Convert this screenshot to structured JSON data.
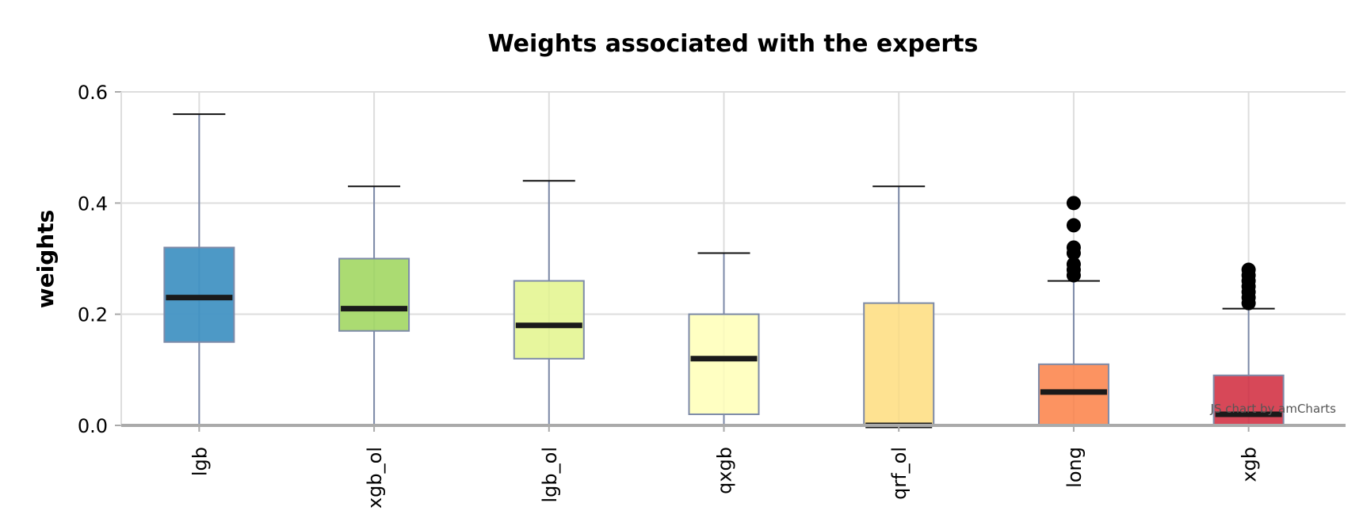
{
  "chart_data": {
    "type": "box",
    "title": "Weights associated with the experts",
    "ylabel": "weights",
    "xlabel": "",
    "ylim": [
      0,
      0.6
    ],
    "yticks": [
      0.0,
      0.2,
      0.4,
      0.6
    ],
    "ytick_labels": [
      "0.0",
      "0.2",
      "0.4",
      "0.6"
    ],
    "grid": true,
    "categories": [
      "lgb",
      "xgb_ol",
      "lgb_ol",
      "qxgb",
      "qrf_ol",
      "long",
      "xgb"
    ],
    "boxes": [
      {
        "name": "lgb",
        "min": 0.0,
        "q1": 0.15,
        "median": 0.23,
        "q3": 0.32,
        "max": 0.56,
        "color": "#4393c3",
        "outliers": []
      },
      {
        "name": "xgb_ol",
        "min": 0.0,
        "q1": 0.17,
        "median": 0.21,
        "q3": 0.3,
        "max": 0.43,
        "color": "#a6d96a",
        "outliers": []
      },
      {
        "name": "lgb_ol",
        "min": 0.0,
        "q1": 0.12,
        "median": 0.18,
        "q3": 0.26,
        "max": 0.44,
        "color": "#e6f598",
        "outliers": []
      },
      {
        "name": "qxgb",
        "min": 0.0,
        "q1": 0.02,
        "median": 0.12,
        "q3": 0.2,
        "max": 0.31,
        "color": "#ffffbf",
        "outliers": []
      },
      {
        "name": "qrf_ol",
        "min": 0.0,
        "q1": 0.0,
        "median": 0.0,
        "q3": 0.22,
        "max": 0.43,
        "color": "#fee08b",
        "outliers": []
      },
      {
        "name": "long",
        "min": 0.0,
        "q1": 0.0,
        "median": 0.06,
        "q3": 0.11,
        "max": 0.26,
        "color": "#fc8d59",
        "outliers": [
          0.27,
          0.28,
          0.29,
          0.31,
          0.32,
          0.36,
          0.4
        ]
      },
      {
        "name": "xgb",
        "min": 0.0,
        "q1": 0.0,
        "median": 0.02,
        "q3": 0.09,
        "max": 0.21,
        "color": "#d53e4f",
        "outliers": [
          0.22,
          0.23,
          0.24,
          0.25,
          0.26,
          0.27,
          0.28
        ]
      }
    ]
  },
  "credit": "JS chart by amCharts",
  "colors": {
    "grid": "#dddddd",
    "axis": "#aaaaaa",
    "whisker": "#7d8aa8",
    "box_border": "#7d8aa8",
    "median": "#1a1a1a",
    "outlier": "#000000"
  }
}
